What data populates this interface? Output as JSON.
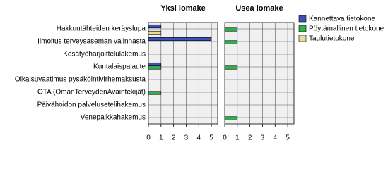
{
  "chart_data": [
    {
      "type": "bar",
      "orientation": "horizontal",
      "title": "Yksi lomake",
      "categories": [
        "Hakkuutähteiden keräyslupa",
        "Ilmoitus terveysaseman valinnasta",
        "Kesätyöharjoittelulakemus",
        "Kuntalaispalaute",
        "Oikaisuvaatimus pysäköintivirhemaksusta",
        "OTA (OmanTerveydenAvaintekijät)",
        "Päivähoidon palvelusetelihakemus",
        "Venepaikkahakemus"
      ],
      "series": [
        {
          "color": "#3f51b5",
          "values": [
            1,
            5,
            0,
            1,
            0,
            0,
            0,
            0
          ]
        },
        {
          "color": "#2eb34b",
          "values": [
            0,
            0,
            0,
            1,
            0,
            1,
            0,
            0
          ]
        },
        {
          "color": "#e8dea0",
          "values": [
            1,
            0,
            0,
            0,
            0,
            0,
            0,
            0
          ]
        }
      ],
      "xlim": [
        0,
        5.5
      ],
      "xticks": [
        0,
        1,
        2,
        3,
        4,
        5
      ],
      "grid": true
    },
    {
      "type": "bar",
      "orientation": "horizontal",
      "title": "Usea lomake",
      "series": [
        {
          "name": "Kannettava tietokone",
          "color": "#3f51b5",
          "values": [
            0,
            0,
            0,
            0,
            0,
            0,
            0,
            0
          ]
        },
        {
          "name": "Pöytämallinen tietokone",
          "color": "#2eb34b",
          "values": [
            1,
            1,
            0,
            1,
            0,
            0,
            0,
            1
          ]
        },
        {
          "name": "Taulutietokone",
          "color": "#e8dea0",
          "values": [
            0,
            0,
            0,
            0,
            0,
            0,
            0,
            0
          ]
        }
      ],
      "xlim": [
        0,
        5.5
      ],
      "xticks": [
        0,
        1,
        2,
        3,
        4,
        5
      ],
      "grid": true,
      "legend": "right"
    }
  ]
}
